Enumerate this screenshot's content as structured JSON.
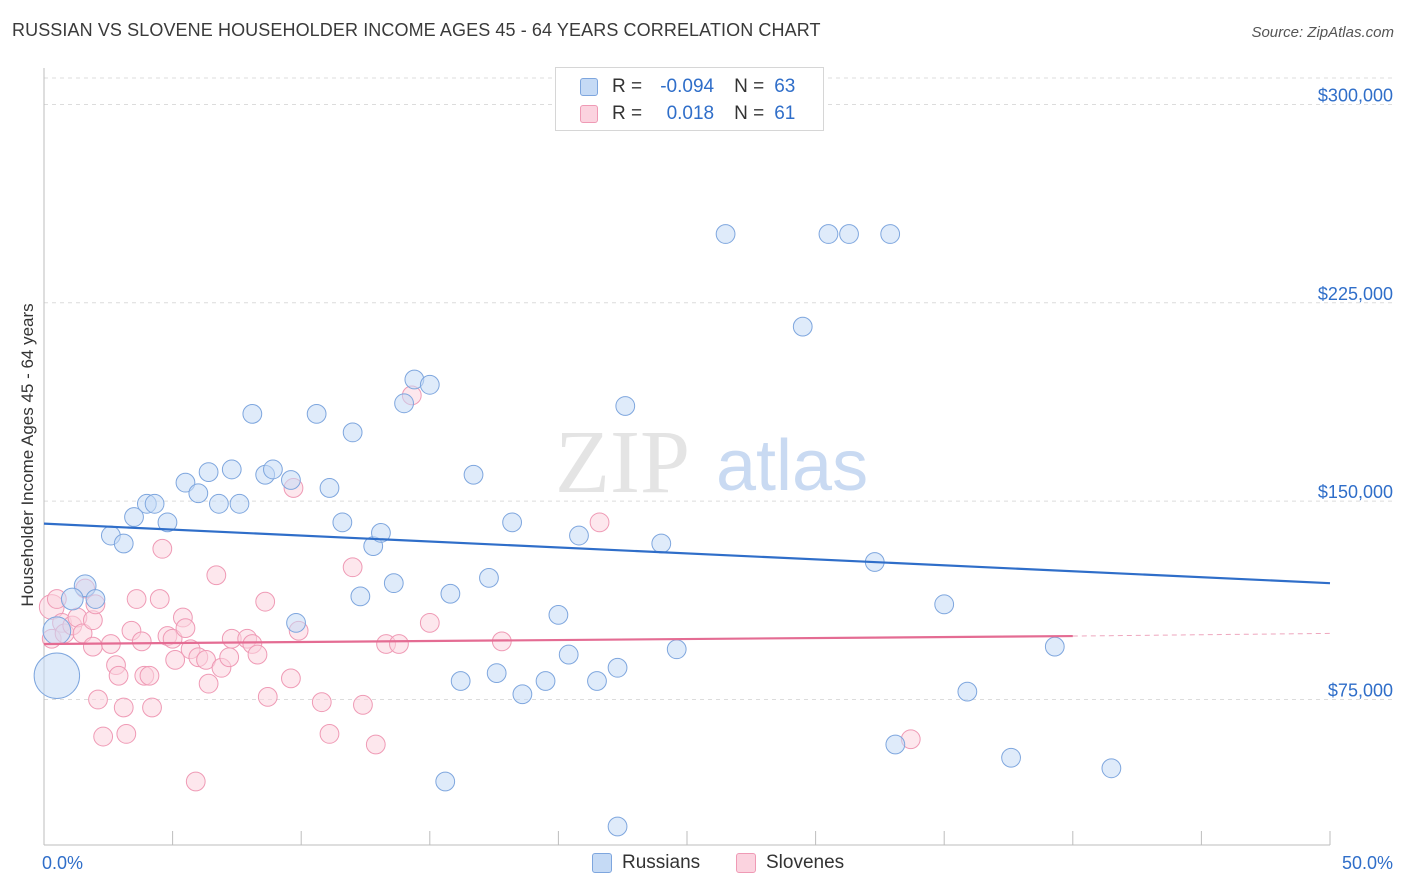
{
  "title": "RUSSIAN VS SLOVENE HOUSEHOLDER INCOME AGES 45 - 64 YEARS CORRELATION CHART",
  "source": "Source: ZipAtlas.com",
  "watermark": {
    "zip": "ZIP",
    "atlas": "atlas"
  },
  "legend_top": {
    "rows": [
      {
        "r_label": "R =",
        "r_value": "-0.094",
        "n_label": "N =",
        "n_value": "63",
        "color": "#a9c8f0"
      },
      {
        "r_label": "R =",
        "r_value": "0.018",
        "n_label": "N =",
        "n_value": "61",
        "color": "#f5b8cb"
      }
    ]
  },
  "legend_bottom": {
    "russians": "Russians",
    "slovenes": "Slovenes"
  },
  "x_axis": {
    "min_label": "0.0%",
    "max_label": "50.0%"
  },
  "colors": {
    "blue": "#2f6ec9",
    "blue_fill": "#a9c8f0",
    "pink": "#e46c93",
    "pink_fill": "#f5b8cb",
    "axis_label": "#2f6ec9"
  },
  "chart_data": {
    "type": "scatter",
    "title": "RUSSIAN VS SLOVENE HOUSEHOLDER INCOME AGES 45 - 64 YEARS CORRELATION CHART",
    "xlabel": "",
    "ylabel": "Householder Income Ages 45 - 64 years",
    "xlim": [
      0,
      50
    ],
    "ylim": [
      20000,
      310000
    ],
    "y_ticks": [
      {
        "value": 75000,
        "label": "$75,000"
      },
      {
        "value": 150000,
        "label": "$150,000"
      },
      {
        "value": 225000,
        "label": "$225,000"
      },
      {
        "value": 300000,
        "label": "$300,000"
      }
    ],
    "grid": true,
    "series": [
      {
        "name": "Russians",
        "color": "#2f6ec9",
        "trend": {
          "x0": 0,
          "y0": 141500,
          "x1": 50,
          "y1": 119000
        },
        "points": [
          [
            0.5,
            84000,
            30
          ],
          [
            0.5,
            101000,
            18
          ],
          [
            1.6,
            118000,
            14
          ],
          [
            1.1,
            113000,
            14
          ],
          [
            2.0,
            113000,
            12
          ],
          [
            2.6,
            137000,
            12
          ],
          [
            3.1,
            134000,
            12
          ],
          [
            3.5,
            144000,
            12
          ],
          [
            4.0,
            149000,
            12
          ],
          [
            4.3,
            149000,
            12
          ],
          [
            4.8,
            142000,
            12
          ],
          [
            5.5,
            157000,
            12
          ],
          [
            6.0,
            153000,
            12
          ],
          [
            6.4,
            161000,
            12
          ],
          [
            6.8,
            149000,
            12
          ],
          [
            7.3,
            162000,
            12
          ],
          [
            7.6,
            149000,
            12
          ],
          [
            8.1,
            183000,
            12
          ],
          [
            8.6,
            160000,
            12
          ],
          [
            8.9,
            162000,
            12
          ],
          [
            9.6,
            158000,
            12
          ],
          [
            9.8,
            104000,
            12
          ],
          [
            10.6,
            183000,
            12
          ],
          [
            11.1,
            155000,
            12
          ],
          [
            11.6,
            142000,
            12
          ],
          [
            12.0,
            176000,
            12
          ],
          [
            12.3,
            114000,
            12
          ],
          [
            12.8,
            133000,
            12
          ],
          [
            13.1,
            138000,
            12
          ],
          [
            13.6,
            119000,
            12
          ],
          [
            14.0,
            187000,
            12
          ],
          [
            14.4,
            196000,
            12
          ],
          [
            15.0,
            194000,
            12
          ],
          [
            15.6,
            44000,
            12
          ],
          [
            15.8,
            115000,
            12
          ],
          [
            16.2,
            82000,
            12
          ],
          [
            16.7,
            160000,
            12
          ],
          [
            17.3,
            121000,
            12
          ],
          [
            17.6,
            85000,
            12
          ],
          [
            18.2,
            142000,
            12
          ],
          [
            18.6,
            77000,
            12
          ],
          [
            19.5,
            82000,
            12
          ],
          [
            20.0,
            107000,
            12
          ],
          [
            20.4,
            92000,
            12
          ],
          [
            20.8,
            137000,
            12
          ],
          [
            21.5,
            82000,
            12
          ],
          [
            22.3,
            87000,
            12
          ],
          [
            22.3,
            27000,
            12
          ],
          [
            22.6,
            186000,
            12
          ],
          [
            24.0,
            134000,
            12
          ],
          [
            24.6,
            94000,
            12
          ],
          [
            26.5,
            251000,
            12
          ],
          [
            29.5,
            216000,
            12
          ],
          [
            30.5,
            251000,
            12
          ],
          [
            31.3,
            251000,
            12
          ],
          [
            32.3,
            127000,
            12
          ],
          [
            32.9,
            251000,
            12
          ],
          [
            33.1,
            58000,
            12
          ],
          [
            35.0,
            111000,
            12
          ],
          [
            35.9,
            78000,
            12
          ],
          [
            37.6,
            53000,
            12
          ],
          [
            39.3,
            95000,
            12
          ],
          [
            41.5,
            49000,
            12
          ]
        ]
      },
      {
        "name": "Slovenes",
        "color": "#e46c93",
        "trend": {
          "x0": 0,
          "y0": 96000,
          "x1": 40,
          "y1": 99000
        },
        "trend_dashed": {
          "x0": 40,
          "y0": 99000,
          "x1": 50,
          "y1": 100000
        },
        "points": [
          [
            0.3,
            110000,
            16
          ],
          [
            0.3,
            98000,
            12
          ],
          [
            0.5,
            113000,
            12
          ],
          [
            0.7,
            104000,
            12
          ],
          [
            0.8,
            100000,
            12
          ],
          [
            1.1,
            103000,
            12
          ],
          [
            1.3,
            106000,
            12
          ],
          [
            1.5,
            100000,
            12
          ],
          [
            1.6,
            117000,
            12
          ],
          [
            1.9,
            105000,
            12
          ],
          [
            1.9,
            95000,
            12
          ],
          [
            2.0,
            111000,
            12
          ],
          [
            2.1,
            75000,
            12
          ],
          [
            2.3,
            61000,
            12
          ],
          [
            2.6,
            96000,
            12
          ],
          [
            2.8,
            88000,
            12
          ],
          [
            2.9,
            84000,
            12
          ],
          [
            3.1,
            72000,
            12
          ],
          [
            3.2,
            62000,
            12
          ],
          [
            3.4,
            101000,
            12
          ],
          [
            3.6,
            113000,
            12
          ],
          [
            3.8,
            97000,
            12
          ],
          [
            3.9,
            84000,
            12
          ],
          [
            4.1,
            84000,
            12
          ],
          [
            4.2,
            72000,
            12
          ],
          [
            4.5,
            113000,
            12
          ],
          [
            4.6,
            132000,
            12
          ],
          [
            4.8,
            99000,
            12
          ],
          [
            5.0,
            98000,
            12
          ],
          [
            5.1,
            90000,
            12
          ],
          [
            5.4,
            106000,
            12
          ],
          [
            5.5,
            102000,
            12
          ],
          [
            5.7,
            94000,
            12
          ],
          [
            5.9,
            44000,
            12
          ],
          [
            6.0,
            91000,
            12
          ],
          [
            6.3,
            90000,
            12
          ],
          [
            6.4,
            81000,
            12
          ],
          [
            6.7,
            122000,
            12
          ],
          [
            6.9,
            87000,
            12
          ],
          [
            7.2,
            91000,
            12
          ],
          [
            7.3,
            98000,
            12
          ],
          [
            7.9,
            98000,
            12
          ],
          [
            8.1,
            96000,
            12
          ],
          [
            8.3,
            92000,
            12
          ],
          [
            8.6,
            112000,
            12
          ],
          [
            8.7,
            76000,
            12
          ],
          [
            9.6,
            83000,
            12
          ],
          [
            9.7,
            155000,
            12
          ],
          [
            9.9,
            101000,
            12
          ],
          [
            10.8,
            74000,
            12
          ],
          [
            11.1,
            62000,
            12
          ],
          [
            12.0,
            125000,
            12
          ],
          [
            12.4,
            73000,
            12
          ],
          [
            12.9,
            58000,
            12
          ],
          [
            13.3,
            96000,
            12
          ],
          [
            13.8,
            96000,
            12
          ],
          [
            14.3,
            190000,
            12
          ],
          [
            15.0,
            104000,
            12
          ],
          [
            17.8,
            97000,
            12
          ],
          [
            21.6,
            142000,
            12
          ],
          [
            33.7,
            60000,
            12
          ]
        ]
      }
    ]
  }
}
